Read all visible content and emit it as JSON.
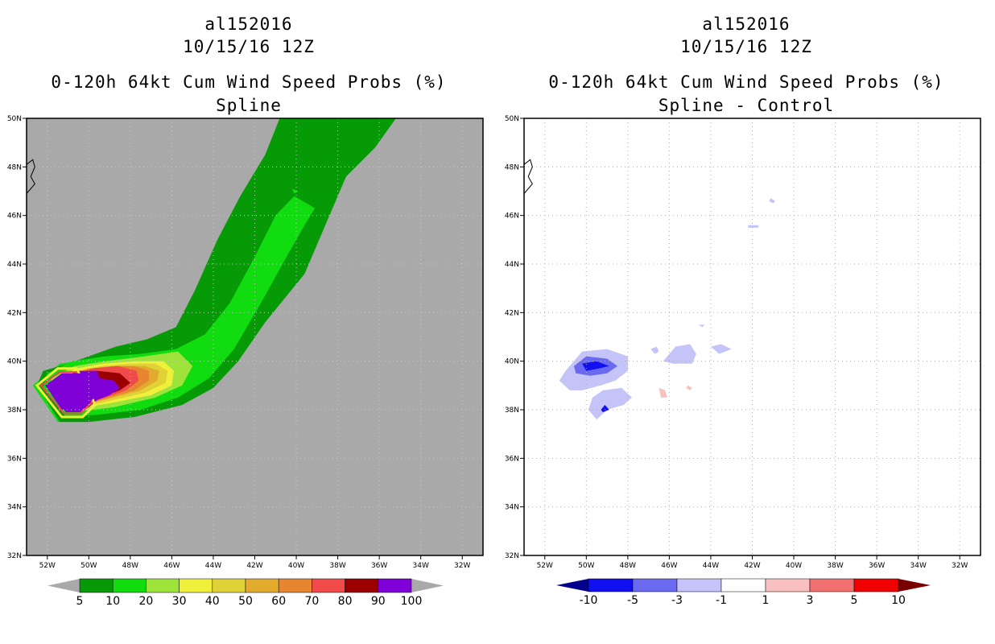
{
  "left": {
    "storm_id": "al152016",
    "datetime": "10/15/16 12Z",
    "product": "0-120h 64kt Cum Wind Speed Probs (%)",
    "subtitle": "Spline",
    "background_color": "#a9a9a9",
    "colorbar": {
      "labels": [
        "5",
        "10",
        "20",
        "30",
        "40",
        "50",
        "60",
        "70",
        "80",
        "90",
        "100"
      ],
      "colors": [
        "#069a06",
        "#10dc10",
        "#9ee33c",
        "#f0f03a",
        "#e0d136",
        "#e2ab2e",
        "#e88530",
        "#f04a4a",
        "#9a0000",
        "#8000d8"
      ],
      "under_color": "#a9a9a9",
      "over_color": "#a9a9a9"
    }
  },
  "right": {
    "storm_id": "al152016",
    "datetime": "10/15/16 12Z",
    "product": "0-120h 64kt Cum Wind Speed Probs (%)",
    "subtitle": "Spline - Control",
    "background_color": "#ffffff",
    "colorbar": {
      "labels": [
        "-10",
        "-5",
        "-3",
        "-1",
        "1",
        "3",
        "5",
        "10"
      ],
      "colors": [
        "#1010f0",
        "#6a6af0",
        "#c4c4f8",
        "#ffffff",
        "#f8c0c0",
        "#f07070",
        "#f00000"
      ],
      "under_color": "#00008c",
      "over_color": "#7a0000"
    }
  },
  "axes": {
    "lon_labels": [
      "52W",
      "50W",
      "48W",
      "46W",
      "44W",
      "42W",
      "40W",
      "38W",
      "36W",
      "34W",
      "32W"
    ],
    "lat_labels": [
      "50N",
      "48N",
      "46N",
      "44N",
      "42N",
      "40N",
      "38N",
      "36N",
      "34N",
      "32N"
    ]
  }
}
